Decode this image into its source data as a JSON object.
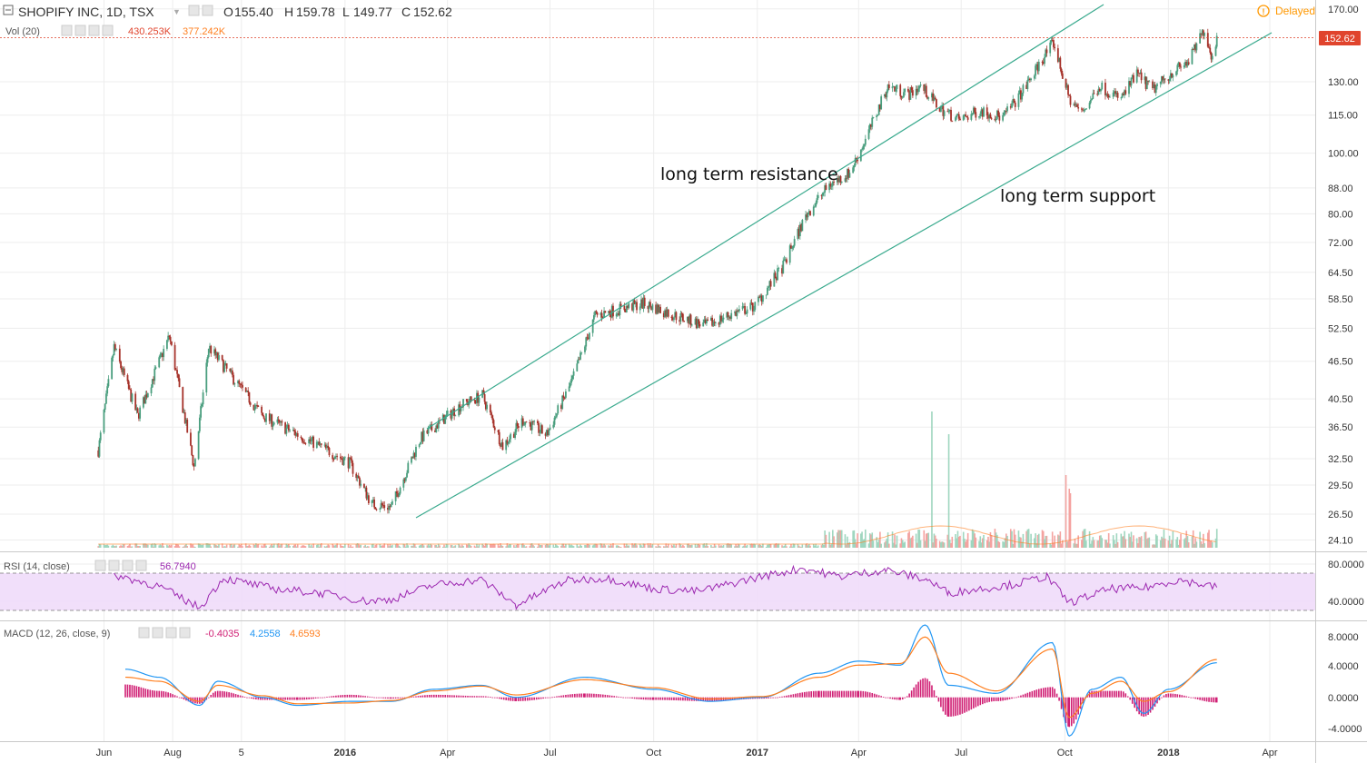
{
  "header": {
    "symbol": "SHOPIFY INC, 1D, TSX",
    "ohlc": [
      {
        "label": "O",
        "value": "155.40"
      },
      {
        "label": "H",
        "value": "159.78"
      },
      {
        "label": "L",
        "value": "149.77"
      },
      {
        "label": "C",
        "value": "152.62"
      }
    ],
    "vol_label": "Vol (20)",
    "vol_value": "430.253K",
    "vol_ma": "377.242K",
    "delayed": "Delayed",
    "last_price": "152.62"
  },
  "rsi": {
    "label": "RSI (14, close)",
    "value": "56.7940",
    "ticks": [
      "80.0000",
      "40.0000"
    ]
  },
  "macd": {
    "label": "MACD (12, 26, close, 9)",
    "hist_value": "-0.4035",
    "macd_value": "4.2558",
    "signal_value": "4.6593",
    "ticks": [
      "8.0000",
      "4.0000",
      "0.0000",
      "-4.0000"
    ]
  },
  "colors": {
    "up": "#4a9e7e",
    "down": "#a6322a",
    "trend": "#3aaa8e",
    "rsi": "#9c27b0",
    "rsi_band": "#efdbfa",
    "macd": "#2196f3",
    "signal": "#ff7f1f",
    "hist": "#d01f74",
    "price_tag": "#e0442d",
    "delayed": "#ff9800"
  },
  "chart_data": {
    "type": "line",
    "title": "SHOPIFY INC, 1D, TSX",
    "y_scale": "log",
    "ylim": [
      23.5,
      171
    ],
    "x_ticks": [
      "Jun",
      "Aug",
      "5",
      "2016",
      "Apr",
      "Jul",
      "Oct",
      "2017",
      "Apr",
      "Jul",
      "Oct",
      "2018",
      "Apr"
    ],
    "y_ticks": [
      "170.00",
      "152.62",
      "130.00",
      "115.00",
      "100.00",
      "88.00",
      "80.00",
      "72.00",
      "64.50",
      "58.50",
      "52.50",
      "46.50",
      "40.50",
      "36.50",
      "32.50",
      "29.50",
      "26.50",
      "24.10"
    ],
    "series": [
      {
        "x": [
          "2015-05-27",
          "2015-06-10",
          "2015-07-01",
          "2015-07-29",
          "2015-08-20",
          "2015-09-02",
          "2015-10-01",
          "2015-10-20",
          "2015-11-20",
          "2015-12-10",
          "2016-01-05",
          "2016-01-25",
          "2016-02-11",
          "2016-03-08",
          "2016-04-12",
          "2016-05-02",
          "2016-05-20",
          "2016-06-07",
          "2016-06-28",
          "2016-07-20",
          "2016-08-10",
          "2016-08-26",
          "2016-09-22",
          "2016-10-20",
          "2016-11-16",
          "2016-12-06",
          "2016-12-30",
          "2017-01-24",
          "2017-02-14",
          "2017-03-06",
          "2017-03-24",
          "2017-04-07",
          "2017-04-27",
          "2017-05-15",
          "2017-05-26",
          "2017-06-12",
          "2017-06-29",
          "2017-07-18",
          "2017-08-07",
          "2017-08-24",
          "2017-09-15",
          "2017-09-21",
          "2017-10-05",
          "2017-10-16",
          "2017-11-01",
          "2017-11-20",
          "2017-12-04",
          "2017-12-18",
          "2018-01-05",
          "2018-01-19",
          "2018-02-02",
          "2018-02-08",
          "2018-02-13"
        ],
        "close": [
          33.5,
          49.0,
          38.0,
          51.0,
          31.5,
          49.0,
          42.0,
          38.0,
          35.5,
          34.0,
          32.0,
          27.5,
          27.2,
          35.0,
          39.5,
          41.0,
          34.0,
          37.5,
          35.5,
          43.0,
          55.0,
          56.0,
          57.5,
          55.0,
          53.0,
          55.0,
          57.0,
          66.0,
          80.0,
          89.0,
          93.0,
          105.0,
          128.0,
          124.0,
          128.0,
          118.0,
          113.0,
          117.0,
          114.0,
          125.0,
          145.0,
          150.0,
          122.0,
          116.0,
          128.0,
          122.0,
          134.0,
          126.0,
          135.0,
          140.0,
          158.0,
          143.0,
          152.6
        ]
      }
    ],
    "annotations": [
      "long term resistance",
      "long term support"
    ],
    "volume": {
      "label": "Vol (20)",
      "spikes": [
        {
          "x": "2017-06-05",
          "value": "spike"
        },
        {
          "x": "2017-06-20",
          "value": "spike"
        },
        {
          "x": "2017-10-02",
          "value": "spike"
        }
      ]
    },
    "rsi": {
      "ylim": [
        20,
        95
      ],
      "band": [
        30,
        70
      ],
      "x": [
        "2015-06-10",
        "2015-07-20",
        "2015-08-25",
        "2015-09-15",
        "2015-10-30",
        "2015-12-10",
        "2016-01-20",
        "2016-02-11",
        "2016-03-20",
        "2016-05-01",
        "2016-06-01",
        "2016-07-15",
        "2016-08-20",
        "2016-10-01",
        "2016-11-10",
        "2017-01-05",
        "2017-02-10",
        "2017-03-15",
        "2017-04-25",
        "2017-06-01",
        "2017-06-20",
        "2017-08-15",
        "2017-09-15",
        "2017-10-05",
        "2017-11-10",
        "2017-12-10",
        "2018-01-10",
        "2018-02-13"
      ],
      "values": [
        72,
        58,
        32,
        68,
        55,
        50,
        40,
        42,
        60,
        66,
        35,
        65,
        68,
        55,
        52,
        70,
        80,
        70,
        78,
        66,
        50,
        60,
        70,
        38,
        55,
        56,
        66,
        56.8
      ]
    },
    "macd": {
      "ylim": [
        -5,
        9
      ],
      "x": [
        "2015-06-20",
        "2015-07-20",
        "2015-08-25",
        "2015-09-10",
        "2015-10-20",
        "2015-11-20",
        "2016-01-05",
        "2016-02-11",
        "2016-03-20",
        "2016-05-01",
        "2016-06-01",
        "2016-08-01",
        "2016-10-01",
        "2016-11-20",
        "2017-01-05",
        "2017-02-25",
        "2017-04-01",
        "2017-05-08",
        "2017-05-30",
        "2017-06-20",
        "2017-08-01",
        "2017-09-20",
        "2017-10-05",
        "2017-10-25",
        "2017-11-20",
        "2017-12-10",
        "2018-01-01",
        "2018-02-13"
      ],
      "macd": [
        3.5,
        2.5,
        -1.0,
        2.0,
        0.0,
        -1.0,
        -0.5,
        -0.5,
        1.0,
        1.5,
        0.0,
        2.5,
        1.0,
        -0.5,
        0.0,
        3.0,
        4.5,
        4.0,
        9.0,
        1.5,
        0.5,
        6.8,
        -4.8,
        1.0,
        2.5,
        -2.0,
        1.0,
        4.3
      ],
      "signal": [
        2.5,
        2.0,
        -0.5,
        1.5,
        0.2,
        -0.8,
        -0.7,
        -0.4,
        0.8,
        1.4,
        0.3,
        2.2,
        1.2,
        -0.2,
        0.1,
        2.5,
        4.0,
        4.2,
        7.5,
        3.0,
        0.8,
        6.0,
        -2.5,
        0.5,
        2.0,
        -0.5,
        0.7,
        4.7
      ]
    }
  }
}
